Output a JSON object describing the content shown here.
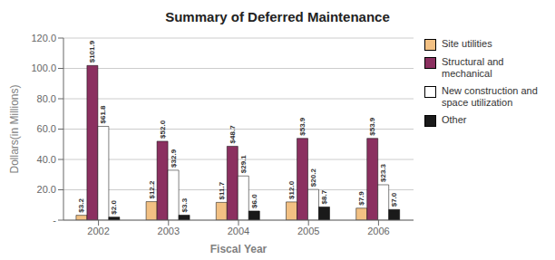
{
  "chart_data": {
    "type": "bar",
    "title": "Summary of Deferred Maintenance",
    "xlabel": "Fiscal Year",
    "ylabel": "Dollars(in Millions)",
    "categories": [
      "2002",
      "2003",
      "2004",
      "2005",
      "2006"
    ],
    "series": [
      {
        "name": "Site utilities",
        "color": "#F2C083",
        "values": [
          3.2,
          12.2,
          11.7,
          12.0,
          7.9
        ],
        "value_labels": [
          "$3.2",
          "$12.2",
          "$11.7",
          "$12.0",
          "$7.9"
        ]
      },
      {
        "name": "Structural and\nmechanical",
        "color": "#8B3060",
        "values": [
          101.9,
          52.0,
          48.7,
          53.9,
          53.9
        ],
        "value_labels": [
          "$101.9",
          "$52.0",
          "$48.7",
          "$53.9",
          "$53.9"
        ]
      },
      {
        "name": "New construction and\nspace utilization",
        "color": "#FFFFFF",
        "values": [
          61.8,
          32.9,
          29.1,
          20.2,
          23.3
        ],
        "value_labels": [
          "$61.8",
          "$32.9",
          "$29.1",
          "$20.2",
          "$23.3"
        ]
      },
      {
        "name": "Other",
        "color": "#1A1A1A",
        "values": [
          2.0,
          3.3,
          6.0,
          8.7,
          7.0
        ],
        "value_labels": [
          "$2.0",
          "$3.3",
          "$6.0",
          "$8.7",
          "$7.0"
        ]
      }
    ],
    "ylim": [
      0,
      120.0
    ],
    "yticks": [
      {
        "value": 0,
        "label": "-"
      },
      {
        "value": 20.0,
        "label": "20.0"
      },
      {
        "value": 40.0,
        "label": "40.0"
      },
      {
        "value": 60.0,
        "label": "60.0"
      },
      {
        "value": 80.0,
        "label": "80.0"
      },
      {
        "value": 100.0,
        "label": "100.0"
      },
      {
        "value": 120.0,
        "label": "120.0"
      }
    ],
    "grid": true,
    "legend": "right",
    "data_labels": true
  }
}
